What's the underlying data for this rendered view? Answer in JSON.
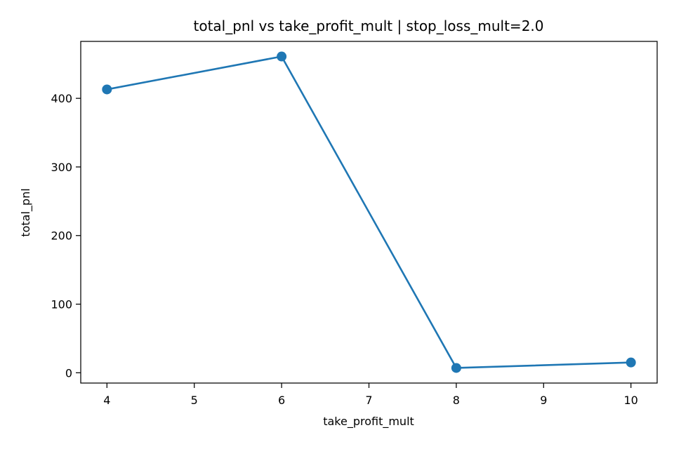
{
  "chart_data": {
    "type": "line",
    "title": "total_pnl vs take_profit_mult | stop_loss_mult=2.0",
    "xlabel": "take_profit_mult",
    "ylabel": "total_pnl",
    "x": [
      4,
      6,
      8,
      10
    ],
    "series": [
      {
        "values": [
          413,
          461,
          7,
          15
        ],
        "color": "#1f77b4",
        "marker": "circle"
      }
    ],
    "xlim": [
      3.7,
      10.3
    ],
    "ylim": [
      -15,
      483
    ],
    "xticks": [
      4,
      5,
      6,
      7,
      8,
      9,
      10
    ],
    "yticks": [
      0,
      100,
      200,
      300,
      400
    ],
    "grid": false,
    "legend": false
  }
}
